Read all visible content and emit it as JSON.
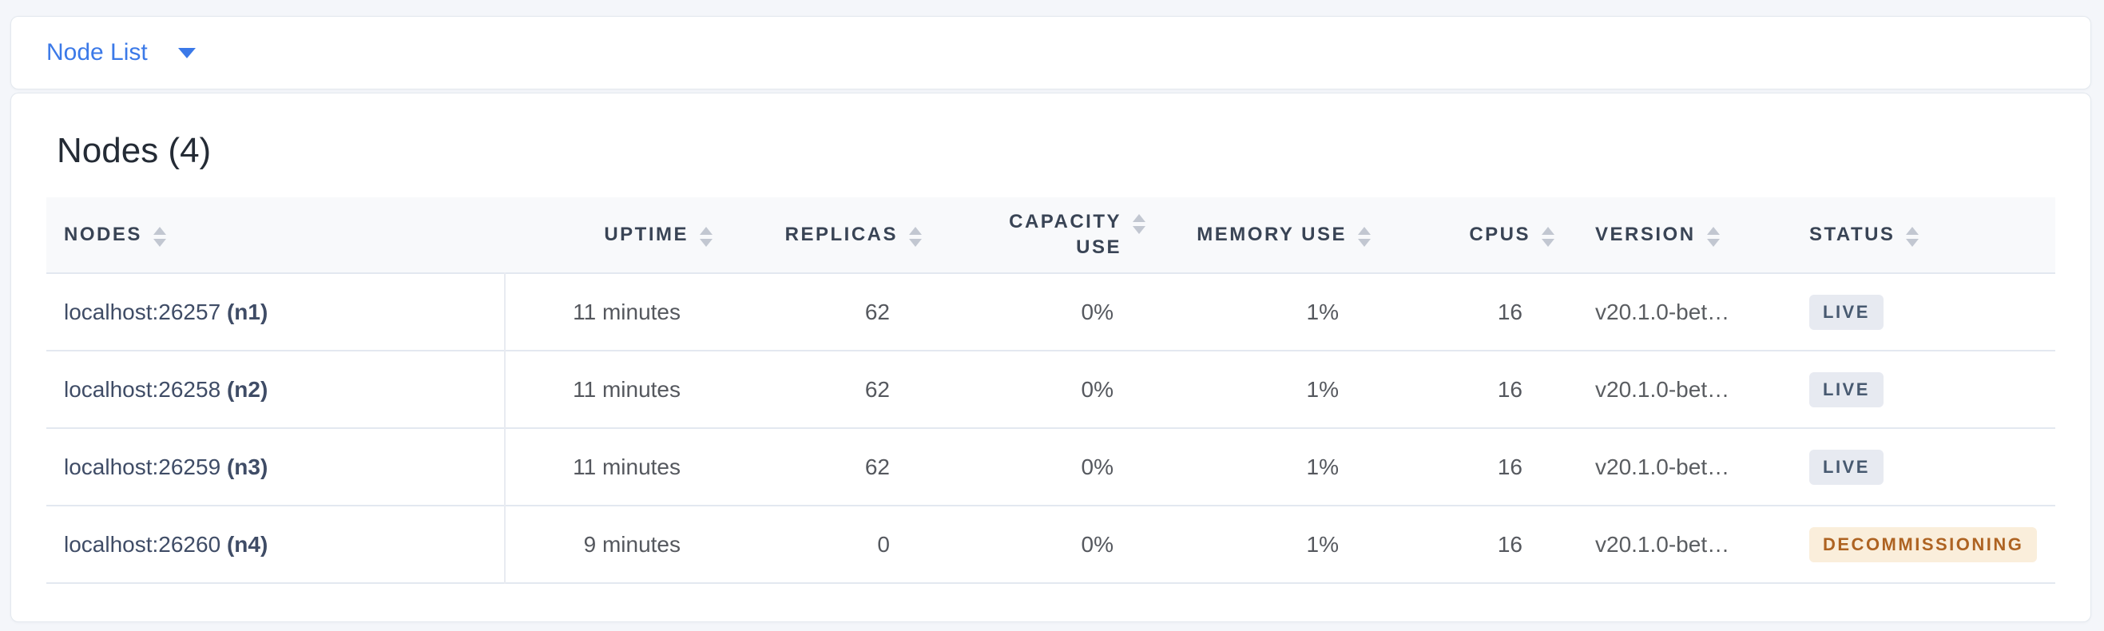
{
  "topbar": {
    "dropdown_label": "Node List"
  },
  "main": {
    "title": "Nodes (4)"
  },
  "table": {
    "columns": [
      {
        "id": "nodes",
        "label": "NODES",
        "align": "left"
      },
      {
        "id": "uptime",
        "label": "UPTIME",
        "align": "right"
      },
      {
        "id": "replicas",
        "label": "REPLICAS",
        "align": "right"
      },
      {
        "id": "capacity_use",
        "label": "CAPACITY USE",
        "align": "right",
        "wrap": true
      },
      {
        "id": "memory_use",
        "label": "MEMORY USE",
        "align": "right"
      },
      {
        "id": "cpus",
        "label": "CPUS",
        "align": "right"
      },
      {
        "id": "version",
        "label": "VERSION",
        "align": "left"
      },
      {
        "id": "status",
        "label": "STATUS",
        "align": "left"
      }
    ],
    "rows": [
      {
        "address": "localhost:26257",
        "node_id": "(n1)",
        "uptime": "11 minutes",
        "replicas": "62",
        "capacity_use": "0%",
        "memory_use": "1%",
        "cpus": "16",
        "version": "v20.1.0-bet…",
        "status": {
          "label": "LIVE",
          "type": "live"
        }
      },
      {
        "address": "localhost:26258",
        "node_id": "(n2)",
        "uptime": "11 minutes",
        "replicas": "62",
        "capacity_use": "0%",
        "memory_use": "1%",
        "cpus": "16",
        "version": "v20.1.0-bet…",
        "status": {
          "label": "LIVE",
          "type": "live"
        }
      },
      {
        "address": "localhost:26259",
        "node_id": "(n3)",
        "uptime": "11 minutes",
        "replicas": "62",
        "capacity_use": "0%",
        "memory_use": "1%",
        "cpus": "16",
        "version": "v20.1.0-bet…",
        "status": {
          "label": "LIVE",
          "type": "live"
        }
      },
      {
        "address": "localhost:26260",
        "node_id": "(n4)",
        "uptime": "9 minutes",
        "replicas": "0",
        "capacity_use": "0%",
        "memory_use": "1%",
        "cpus": "16",
        "version": "v20.1.0-bet…",
        "status": {
          "label": "DECOMMISSIONING",
          "type": "decommissioning"
        }
      }
    ]
  },
  "icons": {
    "dropdown_caret": "caret-down-icon",
    "column_sort": "sort-icon"
  },
  "colors": {
    "accent_blue": "#3B79E8",
    "badge_live_bg": "#E7EAF1",
    "badge_live_text": "#475970",
    "badge_decommissioning_bg": "#FAEEDB",
    "badge_decommissioning_text": "#AE6322"
  }
}
